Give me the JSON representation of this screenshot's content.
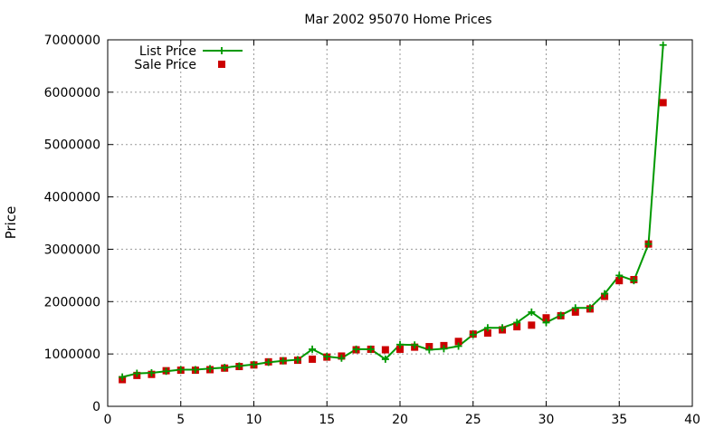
{
  "chart_data": {
    "type": "line",
    "title": "Mar 2002 95070 Home Prices",
    "xlabel": "",
    "ylabel": "Price",
    "xlim": [
      0,
      40
    ],
    "ylim": [
      0,
      7000000
    ],
    "x_ticks": [
      0,
      5,
      10,
      15,
      20,
      25,
      30,
      35,
      40
    ],
    "y_ticks": [
      0,
      1000000,
      2000000,
      3000000,
      4000000,
      5000000,
      6000000,
      7000000
    ],
    "x_tick_labels": [
      "0",
      "5",
      "10",
      "15",
      "20",
      "25",
      "30",
      "35",
      "40"
    ],
    "y_tick_labels": [
      "0",
      "1000000",
      "2000000",
      "3000000",
      "4000000",
      "5000000",
      "6000000",
      "7000000"
    ],
    "grid": true,
    "legend_position": "top-left",
    "x": [
      1,
      2,
      3,
      4,
      5,
      6,
      7,
      8,
      9,
      10,
      11,
      12,
      13,
      14,
      15,
      16,
      17,
      18,
      19,
      20,
      21,
      22,
      23,
      24,
      25,
      26,
      27,
      28,
      29,
      30,
      31,
      32,
      33,
      34,
      35,
      36,
      37,
      38
    ],
    "series": [
      {
        "name": "List Price",
        "style": "line-with-plus-markers",
        "color": "#009900",
        "values": [
          560000,
          630000,
          640000,
          670000,
          700000,
          700000,
          720000,
          740000,
          770000,
          800000,
          840000,
          870000,
          890000,
          1090000,
          950000,
          920000,
          1090000,
          1090000,
          900000,
          1180000,
          1170000,
          1080000,
          1100000,
          1150000,
          1370000,
          1500000,
          1500000,
          1600000,
          1800000,
          1600000,
          1740000,
          1880000,
          1880000,
          2150000,
          2500000,
          2400000,
          3100000,
          6900000
        ]
      },
      {
        "name": "Sale Price",
        "style": "square-markers",
        "color": "#cc0000",
        "values": [
          510000,
          590000,
          610000,
          680000,
          690000,
          690000,
          700000,
          730000,
          760000,
          790000,
          850000,
          870000,
          880000,
          900000,
          940000,
          960000,
          1080000,
          1090000,
          1080000,
          1090000,
          1130000,
          1140000,
          1160000,
          1240000,
          1380000,
          1400000,
          1460000,
          1520000,
          1550000,
          1690000,
          1730000,
          1800000,
          1860000,
          2100000,
          2400000,
          2420000,
          3100000,
          5800000
        ]
      }
    ]
  }
}
